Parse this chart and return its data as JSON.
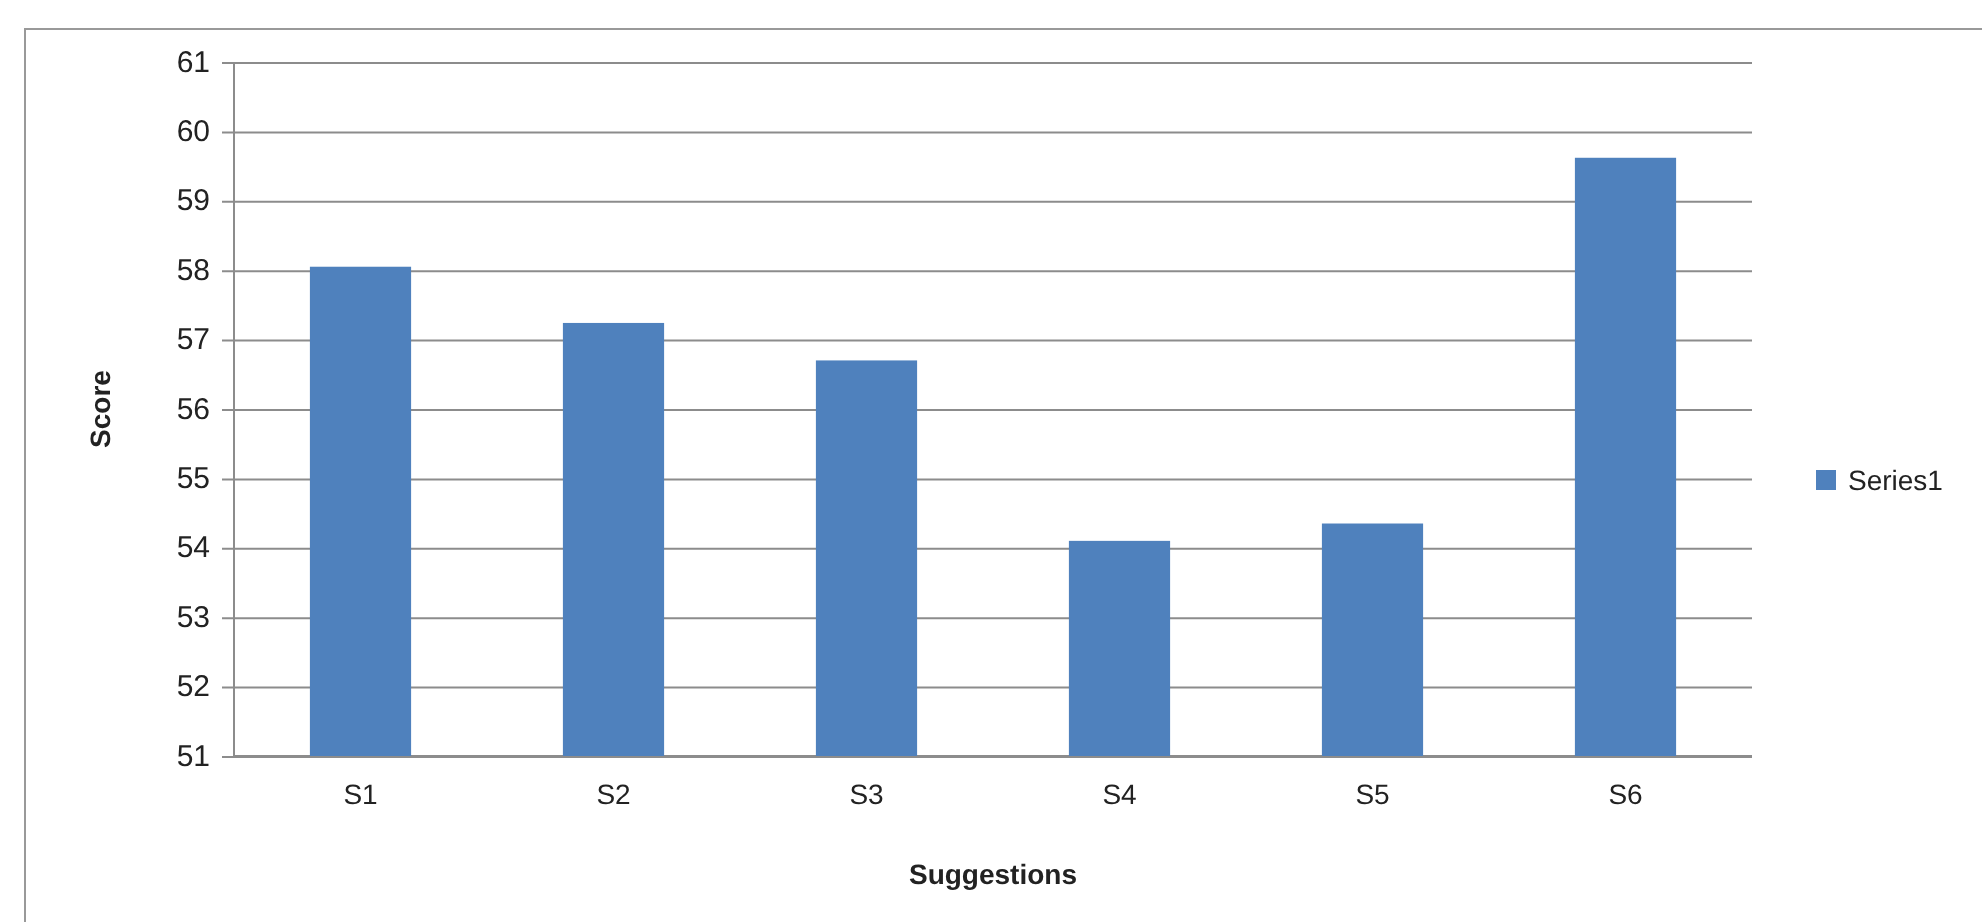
{
  "chart_data": {
    "type": "bar",
    "xlabel": "Suggestions",
    "ylabel": "Score",
    "categories": [
      "S1",
      "S2",
      "S3",
      "S4",
      "S5",
      "S6"
    ],
    "series": [
      {
        "name": "Series1",
        "color": "#4f81bd",
        "values": [
          58.05,
          57.24,
          56.7,
          54.1,
          54.35,
          59.62
        ]
      }
    ],
    "ylim": [
      51,
      61
    ],
    "yticks": [
      51,
      52,
      53,
      54,
      55,
      56,
      57,
      58,
      59,
      60,
      61
    ],
    "grid": "y",
    "legend": "right"
  }
}
